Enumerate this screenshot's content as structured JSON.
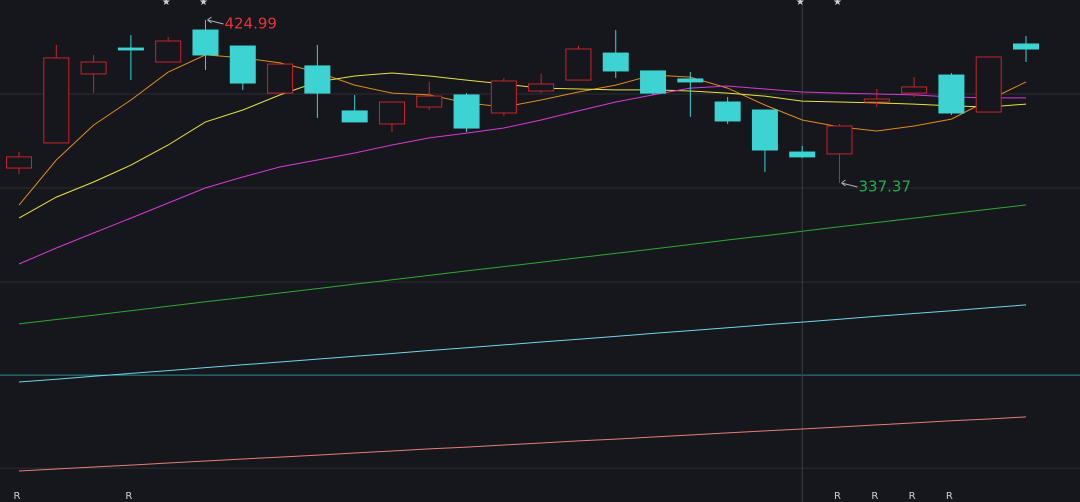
{
  "chart_data": {
    "type": "candlestick",
    "categories": [
      null,
      null,
      null,
      null,
      null,
      null,
      null,
      null,
      null,
      null,
      null,
      null,
      null,
      null,
      null,
      null,
      null,
      null,
      null,
      null,
      null,
      null,
      null,
      null,
      null,
      null,
      null,
      null
    ],
    "open": [
      345.4,
      358.9,
      396.0,
      409.9,
      402.4,
      419.6,
      411.0,
      385.7,
      400.3,
      376.1,
      369.1,
      378.2,
      384.7,
      375.0,
      386.8,
      392.7,
      407.2,
      397.6,
      393.3,
      380.9,
      376.6,
      354.0,
      353.0,
      380.9,
      385.7,
      395.4,
      375.5,
      412.1
    ],
    "high": [
      354.0,
      411.6,
      406.2,
      416.9,
      415.9,
      424.99,
      411.0,
      401.3,
      411.6,
      384.7,
      380.9,
      391.7,
      385.7,
      393.8,
      396.0,
      411.0,
      419.6,
      397.6,
      397.0,
      383.6,
      376.6,
      357.3,
      369.1,
      387.9,
      394.3,
      396.5,
      405.1,
      416.4
    ],
    "low": [
      342.2,
      358.9,
      385.7,
      392.7,
      402.4,
      398.1,
      387.4,
      385.7,
      372.3,
      370.2,
      364.8,
      376.6,
      364.8,
      373.4,
      385.7,
      392.7,
      393.8,
      384.7,
      372.9,
      369.1,
      343.3,
      350.8,
      337.37,
      378.2,
      383.6,
      373.9,
      375.5,
      402.4
    ],
    "close": [
      351.4,
      404.6,
      402.4,
      408.9,
      413.7,
      406.2,
      391.1,
      401.3,
      385.7,
      370.2,
      380.9,
      384.1,
      366.9,
      392.2,
      390.6,
      409.4,
      397.6,
      385.7,
      391.7,
      370.7,
      355.1,
      351.4,
      368.0,
      382.5,
      389.0,
      375.0,
      405.1,
      409.4
    ],
    "up_color": "#c8232c",
    "down_color": "#3dd3d3",
    "lines": [
      {
        "color": "#e08a1e",
        "values": [
          325.5,
          349.7,
          368.5,
          382.0,
          397.0,
          406.2,
          404.6,
          401.9,
          397.0,
          390.0,
          385.7,
          384.7,
          380.4,
          378.2,
          382.0,
          386.3,
          390.0,
          395.4,
          394.3,
          388.4,
          379.3,
          371.2,
          367.5,
          365.3,
          368.0,
          371.7,
          382.0,
          391.7
        ]
      },
      {
        "color": "#e6e33a",
        "values": [
          318.5,
          329.8,
          337.9,
          347.0,
          357.8,
          370.2,
          376.6,
          384.7,
          391.7,
          394.9,
          396.5,
          394.9,
          392.7,
          390.6,
          388.4,
          387.9,
          387.4,
          387.4,
          386.8,
          385.7,
          384.1,
          381.4,
          380.9,
          380.4,
          379.8,
          378.8,
          378.2,
          379.8
        ]
      },
      {
        "color": "#d63ad6",
        "values": [
          293.8,
          302.4,
          310.5,
          318.5,
          326.6,
          334.7,
          340.6,
          346.0,
          349.7,
          353.5,
          357.8,
          361.6,
          364.2,
          366.9,
          371.2,
          376.1,
          380.9,
          384.7,
          388.4,
          389.5,
          387.9,
          386.3,
          385.7,
          385.2,
          384.7,
          383.6,
          383.1,
          383.1
        ]
      },
      {
        "color": "#2fa82f",
        "values": [
          261.6,
          264.0,
          266.3,
          268.7,
          271.1,
          273.5,
          275.8,
          278.2,
          280.6,
          283.0,
          285.3,
          287.7,
          290.1,
          292.4,
          294.8,
          297.2,
          299.5,
          301.9,
          304.3,
          306.7,
          309.0,
          311.4,
          313.8,
          316.1,
          318.5,
          320.9,
          323.2,
          325.6
        ]
      },
      {
        "color": "#6fd6e6",
        "values": [
          230.4,
          231.9,
          233.5,
          235.0,
          236.5,
          238.1,
          239.6,
          241.1,
          242.7,
          244.2,
          245.7,
          247.3,
          248.8,
          250.3,
          251.9,
          253.4,
          254.9,
          256.5,
          258.0,
          259.5,
          261.1,
          262.6,
          264.1,
          265.7,
          267.2,
          268.7,
          270.3,
          271.8
        ]
      },
      {
        "color": "#e87c7c",
        "values": [
          182.5,
          183.6,
          184.7,
          185.7,
          186.8,
          187.9,
          189.0,
          190.0,
          191.1,
          192.2,
          193.3,
          194.4,
          195.4,
          196.5,
          197.6,
          198.7,
          199.7,
          200.8,
          201.9,
          203.0,
          204.1,
          205.1,
          206.2,
          207.3,
          208.4,
          209.5,
          210.5,
          211.6
        ]
      }
    ],
    "ylim": [
      165.86,
      435.74
    ],
    "yticks": [
      385.2,
      334.7,
      284.1,
      184.1
    ],
    "grid": true,
    "reference_line": {
      "value": 234.1,
      "color": "#2a8a8a"
    },
    "crosshair_index": 21,
    "top_markers": [
      {
        "index": 4,
        "label": "★"
      },
      {
        "index": 5,
        "label": "★"
      },
      {
        "index": 21,
        "label": "★"
      },
      {
        "index": 22,
        "label": "★"
      }
    ],
    "bottom_markers": [
      {
        "index": 0,
        "label": "R"
      },
      {
        "index": 3,
        "label": "R"
      },
      {
        "index": 22,
        "label": "R"
      },
      {
        "index": 23,
        "label": "R"
      },
      {
        "index": 24,
        "label": "R"
      },
      {
        "index": 25,
        "label": "R"
      }
    ],
    "annotations": [
      {
        "index": 5,
        "value": 424.99,
        "color": "#e8333a"
      },
      {
        "index": 22,
        "value": 337.37,
        "color": "#22b04a"
      }
    ]
  }
}
